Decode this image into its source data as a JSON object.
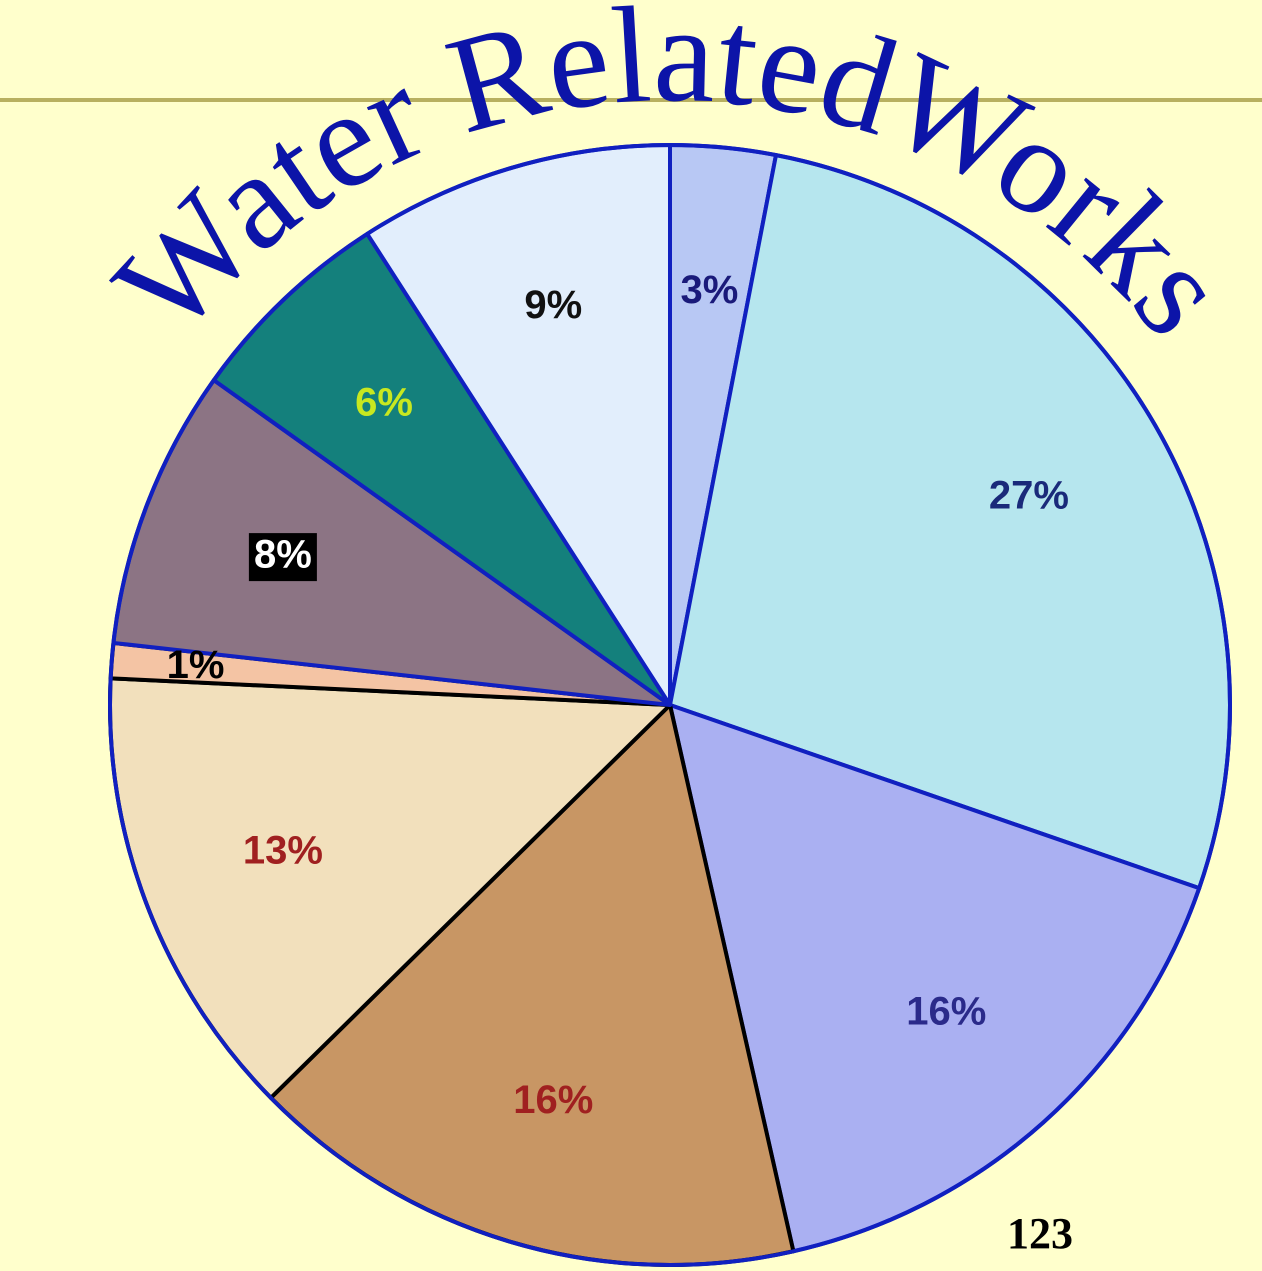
{
  "chart_data": {
    "type": "pie",
    "title": "Water RelatedWorks",
    "values": [
      3,
      27,
      16,
      16,
      13,
      1,
      8,
      6,
      9
    ],
    "value_labels": [
      "3%",
      "27%",
      "16%",
      "16%",
      "13%",
      "1%",
      "8%",
      "6%",
      "9%"
    ],
    "colors": [
      "#b8c8f4",
      "#b6e6ee",
      "#aab0f2",
      "#c89664",
      "#f2e0bc",
      "#f4c4a4",
      "#8c7484",
      "#14807c",
      "#e2eefc"
    ],
    "edge_colors": [
      "#1020c0",
      "#1020c0",
      "#1020c0",
      "#000000",
      "#000000",
      "#000000",
      "#1020c0",
      "#1020c0",
      "#1020c0"
    ],
    "label_colors": [
      "#1a1a7a",
      "#1a2a7a",
      "#2a2a8a",
      "#a02020",
      "#a02020",
      "#000000",
      "#ffffff",
      "#c8e820",
      "#111111"
    ]
  },
  "page_number": "123"
}
